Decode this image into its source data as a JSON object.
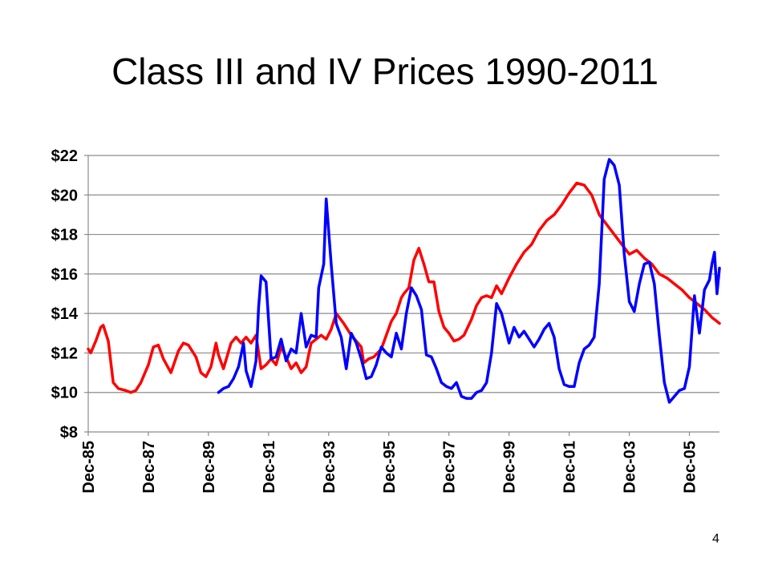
{
  "slide": {
    "title": "Class III and IV Prices 1990-2011",
    "page_number": "4"
  },
  "chart_data": {
    "type": "line",
    "title": "",
    "xlabel": "",
    "ylabel": "",
    "ylim": [
      8,
      22
    ],
    "y_ticks": [
      8,
      10,
      12,
      14,
      16,
      18,
      20,
      22
    ],
    "y_tick_labels": [
      "$8",
      "$10",
      "$12",
      "$14",
      "$16",
      "$18",
      "$20",
      "$22"
    ],
    "x_range": [
      "1985-12",
      "2006-12"
    ],
    "x_ticks": [
      "1985-12",
      "1987-12",
      "1989-12",
      "1991-12",
      "1993-12",
      "1995-12",
      "1997-12",
      "1999-12",
      "2001-12",
      "2003-12",
      "2005-12"
    ],
    "x_tick_labels": [
      "Dec-85",
      "Dec-87",
      "Dec-89",
      "Dec-91",
      "Dec-93",
      "Dec-95",
      "Dec-97",
      "Dec-99",
      "Dec-01",
      "Dec-03",
      "Dec-05"
    ],
    "grid": "horizontal",
    "legend": "none",
    "series": [
      {
        "color": "#ff0000",
        "points": [
          [
            "1985-12",
            12.2
          ],
          [
            "1986-01",
            12.0
          ],
          [
            "1986-03",
            12.6
          ],
          [
            "1986-05",
            13.3
          ],
          [
            "1986-06",
            13.4
          ],
          [
            "1986-08",
            12.6
          ],
          [
            "1986-10",
            10.5
          ],
          [
            "1986-12",
            10.2
          ],
          [
            "1987-03",
            10.1
          ],
          [
            "1987-05",
            10.0
          ],
          [
            "1987-07",
            10.1
          ],
          [
            "1987-09",
            10.5
          ],
          [
            "1987-12",
            11.4
          ],
          [
            "1988-02",
            12.3
          ],
          [
            "1988-04",
            12.4
          ],
          [
            "1988-06",
            11.7
          ],
          [
            "1988-09",
            11.0
          ],
          [
            "1988-12",
            12.1
          ],
          [
            "1989-02",
            12.5
          ],
          [
            "1989-04",
            12.4
          ],
          [
            "1989-07",
            11.8
          ],
          [
            "1989-09",
            11.0
          ],
          [
            "1989-11",
            10.8
          ],
          [
            "1990-01",
            11.3
          ],
          [
            "1990-03",
            12.5
          ],
          [
            "1990-04",
            11.9
          ],
          [
            "1990-06",
            11.2
          ],
          [
            "1990-09",
            12.5
          ],
          [
            "1990-11",
            12.8
          ],
          [
            "1991-01",
            12.5
          ],
          [
            "1991-03",
            12.8
          ],
          [
            "1991-05",
            12.5
          ],
          [
            "1991-07",
            12.9
          ],
          [
            "1991-09",
            11.2
          ],
          [
            "1991-11",
            11.4
          ],
          [
            "1992-01",
            11.7
          ],
          [
            "1992-03",
            11.4
          ],
          [
            "1992-05",
            12.3
          ],
          [
            "1992-07",
            11.8
          ],
          [
            "1992-09",
            11.2
          ],
          [
            "1992-11",
            11.5
          ],
          [
            "1993-01",
            11.0
          ],
          [
            "1993-03",
            11.3
          ],
          [
            "1993-05",
            12.5
          ],
          [
            "1993-07",
            12.7
          ],
          [
            "1993-09",
            12.9
          ],
          [
            "1993-11",
            12.7
          ],
          [
            "1994-01",
            13.2
          ],
          [
            "1994-03",
            14.0
          ],
          [
            "1994-06",
            13.5
          ],
          [
            "1994-09",
            12.9
          ],
          [
            "1994-11",
            12.6
          ],
          [
            "1995-01",
            12.3
          ],
          [
            "1995-02",
            11.5
          ],
          [
            "1995-04",
            11.7
          ],
          [
            "1995-06",
            11.8
          ],
          [
            "1995-09",
            12.2
          ],
          [
            "1995-11",
            12.9
          ],
          [
            "1996-01",
            13.6
          ],
          [
            "1996-03",
            14.0
          ],
          [
            "1996-05",
            14.8
          ],
          [
            "1996-06",
            15.0
          ],
          [
            "1996-08",
            15.3
          ],
          [
            "1996-10",
            16.7
          ],
          [
            "1996-12",
            17.3
          ],
          [
            "1997-02",
            16.5
          ],
          [
            "1997-04",
            15.6
          ],
          [
            "1997-06",
            15.6
          ],
          [
            "1997-08",
            14.1
          ],
          [
            "1997-10",
            13.3
          ],
          [
            "1997-12",
            13.0
          ],
          [
            "1998-02",
            12.6
          ],
          [
            "1998-04",
            12.7
          ],
          [
            "1998-06",
            12.9
          ],
          [
            "1998-09",
            13.7
          ],
          [
            "1998-11",
            14.4
          ],
          [
            "1999-01",
            14.8
          ],
          [
            "1999-03",
            14.9
          ],
          [
            "1999-05",
            14.8
          ],
          [
            "1999-07",
            15.4
          ],
          [
            "1999-09",
            15.0
          ],
          [
            "1999-12",
            15.8
          ],
          [
            "2000-03",
            16.5
          ],
          [
            "2000-06",
            17.1
          ],
          [
            "2000-09",
            17.5
          ],
          [
            "2000-12",
            18.2
          ],
          [
            "2001-03",
            18.7
          ],
          [
            "2001-06",
            19.0
          ],
          [
            "2001-09",
            19.5
          ],
          [
            "2001-12",
            20.1
          ],
          [
            "2002-03",
            20.6
          ],
          [
            "2002-06",
            20.5
          ],
          [
            "2002-09",
            20.0
          ],
          [
            "2002-12",
            19.0
          ],
          [
            "2003-03",
            18.5
          ],
          [
            "2003-06",
            18.0
          ],
          [
            "2003-09",
            17.5
          ],
          [
            "2003-12",
            17.0
          ],
          [
            "2004-03",
            17.2
          ],
          [
            "2004-06",
            16.8
          ],
          [
            "2004-09",
            16.5
          ],
          [
            "2004-12",
            16.0
          ],
          [
            "2005-03",
            15.8
          ],
          [
            "2005-06",
            15.5
          ],
          [
            "2005-09",
            15.2
          ],
          [
            "2005-12",
            14.8
          ],
          [
            "2006-03",
            14.5
          ],
          [
            "2006-06",
            14.2
          ],
          [
            "2006-09",
            13.8
          ],
          [
            "2006-12",
            13.5
          ]
        ]
      },
      {
        "color": "#0000ff",
        "points": [
          [
            "1990-04",
            10.0
          ],
          [
            "1990-06",
            10.2
          ],
          [
            "1990-08",
            10.3
          ],
          [
            "1990-10",
            10.7
          ],
          [
            "1990-12",
            11.3
          ],
          [
            "1991-02",
            12.5
          ],
          [
            "1991-03",
            11.1
          ],
          [
            "1991-05",
            10.3
          ],
          [
            "1991-07",
            11.6
          ],
          [
            "1991-08",
            14.3
          ],
          [
            "1991-09",
            15.9
          ],
          [
            "1991-11",
            15.6
          ],
          [
            "1992-01",
            11.7
          ],
          [
            "1992-03",
            11.8
          ],
          [
            "1992-05",
            12.7
          ],
          [
            "1992-07",
            11.6
          ],
          [
            "1992-09",
            12.2
          ],
          [
            "1992-11",
            12.0
          ],
          [
            "1993-01",
            14.0
          ],
          [
            "1993-03",
            12.3
          ],
          [
            "1993-05",
            12.9
          ],
          [
            "1993-07",
            12.8
          ],
          [
            "1993-08",
            15.3
          ],
          [
            "1993-10",
            16.5
          ],
          [
            "1993-11",
            19.8
          ],
          [
            "1994-01",
            16.5
          ],
          [
            "1994-03",
            13.5
          ],
          [
            "1994-05",
            12.8
          ],
          [
            "1994-07",
            11.2
          ],
          [
            "1994-09",
            13.0
          ],
          [
            "1994-11",
            12.5
          ],
          [
            "1995-01",
            11.7
          ],
          [
            "1995-03",
            10.7
          ],
          [
            "1995-05",
            10.8
          ],
          [
            "1995-07",
            11.4
          ],
          [
            "1995-09",
            12.3
          ],
          [
            "1995-11",
            12.0
          ],
          [
            "1996-01",
            11.8
          ],
          [
            "1996-03",
            13.0
          ],
          [
            "1996-05",
            12.2
          ],
          [
            "1996-07",
            14.0
          ],
          [
            "1996-09",
            15.3
          ],
          [
            "1996-11",
            14.9
          ],
          [
            "1997-01",
            14.2
          ],
          [
            "1997-03",
            11.9
          ],
          [
            "1997-05",
            11.8
          ],
          [
            "1997-07",
            11.2
          ],
          [
            "1997-09",
            10.5
          ],
          [
            "1997-11",
            10.3
          ],
          [
            "1998-01",
            10.2
          ],
          [
            "1998-03",
            10.5
          ],
          [
            "1998-05",
            9.8
          ],
          [
            "1998-07",
            9.7
          ],
          [
            "1998-09",
            9.7
          ],
          [
            "1998-11",
            10.0
          ],
          [
            "1999-01",
            10.1
          ],
          [
            "1999-03",
            10.5
          ],
          [
            "1999-05",
            12.0
          ],
          [
            "1999-07",
            14.5
          ],
          [
            "1999-09",
            14.0
          ],
          [
            "1999-12",
            12.5
          ],
          [
            "2000-02",
            13.3
          ],
          [
            "2000-04",
            12.8
          ],
          [
            "2000-06",
            13.1
          ],
          [
            "2000-08",
            12.7
          ],
          [
            "2000-10",
            12.3
          ],
          [
            "2000-12",
            12.7
          ],
          [
            "2001-02",
            13.2
          ],
          [
            "2001-04",
            13.5
          ],
          [
            "2001-06",
            12.8
          ],
          [
            "2001-08",
            11.2
          ],
          [
            "2001-10",
            10.4
          ],
          [
            "2001-12",
            10.3
          ],
          [
            "2002-02",
            10.3
          ],
          [
            "2002-04",
            11.5
          ],
          [
            "2002-06",
            12.2
          ],
          [
            "2002-08",
            12.4
          ],
          [
            "2002-10",
            12.8
          ],
          [
            "2002-12",
            15.5
          ],
          [
            "2003-02",
            20.8
          ],
          [
            "2003-04",
            21.8
          ],
          [
            "2003-06",
            21.5
          ],
          [
            "2003-08",
            20.5
          ],
          [
            "2003-10",
            17.0
          ],
          [
            "2003-12",
            14.6
          ],
          [
            "2004-02",
            14.1
          ],
          [
            "2004-04",
            15.5
          ],
          [
            "2004-06",
            16.5
          ],
          [
            "2004-08",
            16.6
          ],
          [
            "2004-10",
            15.5
          ],
          [
            "2004-12",
            12.9
          ],
          [
            "2005-02",
            10.5
          ],
          [
            "2005-04",
            9.5
          ],
          [
            "2005-06",
            9.8
          ],
          [
            "2005-08",
            10.1
          ],
          [
            "2005-10",
            10.2
          ],
          [
            "2005-12",
            11.3
          ],
          [
            "2006-02",
            14.9
          ],
          [
            "2006-04",
            13.0
          ],
          [
            "2006-06",
            15.2
          ],
          [
            "2006-08",
            15.7
          ],
          [
            "2006-09",
            16.5
          ],
          [
            "2006-10",
            17.1
          ],
          [
            "2006-11",
            15.0
          ],
          [
            "2006-12",
            16.3
          ]
        ]
      }
    ]
  }
}
